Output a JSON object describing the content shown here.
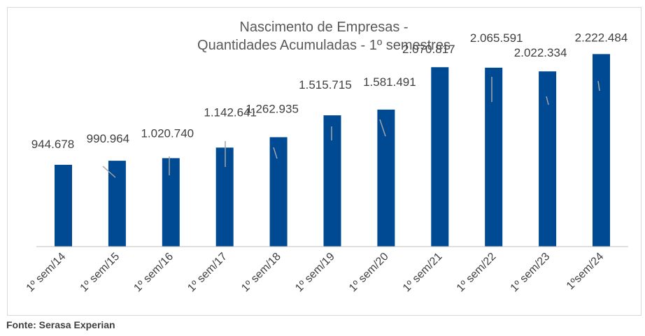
{
  "chart_data": {
    "type": "bar",
    "title_lines": [
      "Nascimento de Empresas -",
      "Quantidades Acumuladas - 1º semestres"
    ],
    "categories": [
      "1º sem/14",
      "1º sem/15",
      "1º sem/16",
      "1º sem/17",
      "1º sem/18",
      "1º sem/19",
      "1º sem/20",
      "1º sem/21",
      "1º sem/22",
      "1º sem/23",
      "1ºsem/24"
    ],
    "values": [
      944678,
      990964,
      1020740,
      1142641,
      1262935,
      1515715,
      1581491,
      2070817,
      2065591,
      2022334,
      2222484
    ],
    "data_labels": [
      "944.678",
      "990.964",
      "1.020.740",
      "1.142.641",
      "1.262.935",
      "1.515.715",
      "1.581.491",
      "2.070.817",
      "2.065.591",
      "2.022.334",
      "2.222.484"
    ],
    "ylim": [
      0,
      2500000
    ],
    "bar_color": "#004a93",
    "grid": false,
    "legend": "none"
  },
  "source": "Fonte: Serasa Experian"
}
